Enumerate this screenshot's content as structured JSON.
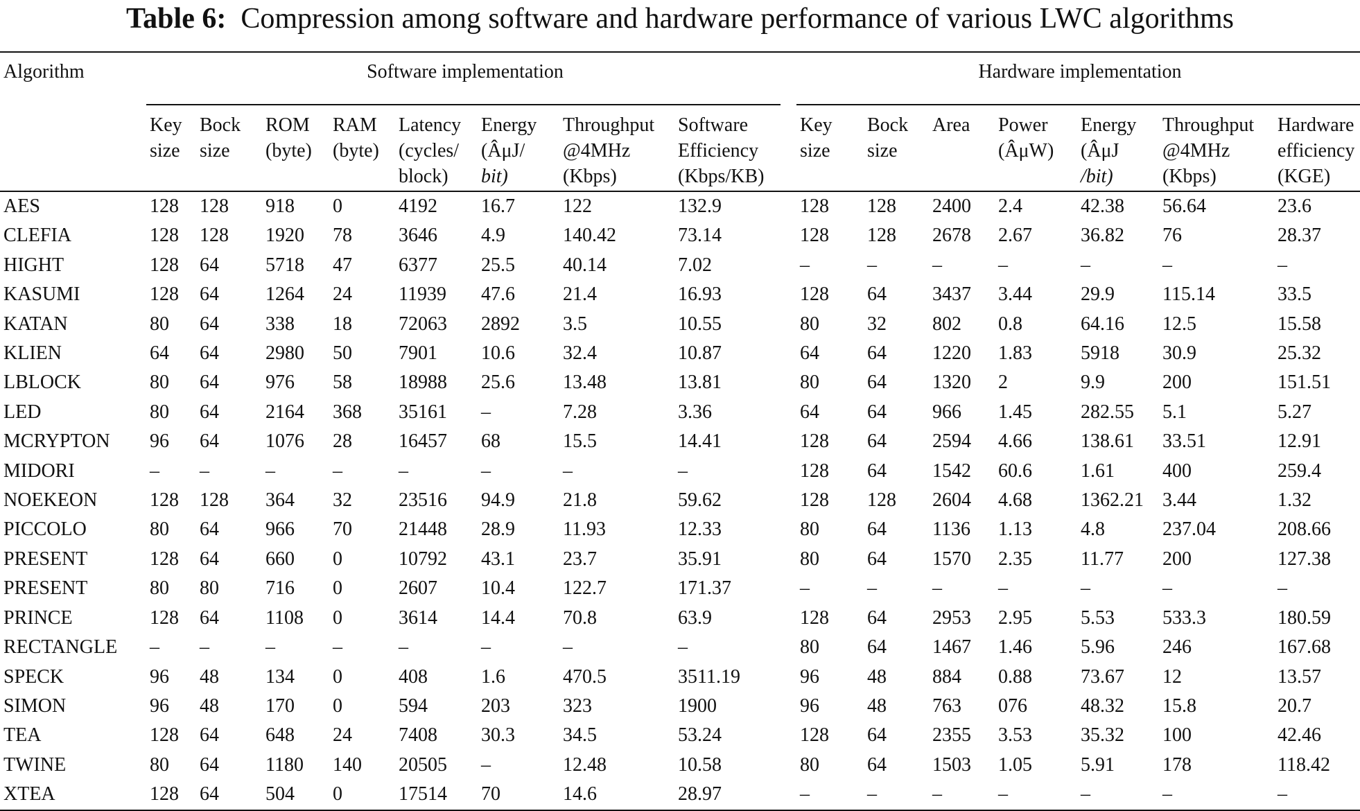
{
  "caption": {
    "label": "Table 6:",
    "text": "Compression among software and hardware performance of various LWC algorithms"
  },
  "table": {
    "algorithm_header": "Algorithm",
    "software_group": "Software implementation",
    "hardware_group": "Hardware implementation",
    "software_columns": [
      [
        "Key",
        "size",
        ""
      ],
      [
        "Bock",
        "size",
        ""
      ],
      [
        "ROM",
        "(byte)",
        ""
      ],
      [
        "RAM",
        "(byte)",
        ""
      ],
      [
        "Latency",
        "(cycles/",
        "block)"
      ],
      [
        "Energy",
        "(ÂμJ/",
        "bit)"
      ],
      [
        "Throughput",
        "@4MHz",
        "(Kbps)"
      ],
      [
        "Software",
        "Efficiency",
        "(Kbps/KB)"
      ]
    ],
    "hardware_columns": [
      [
        "Key",
        "size",
        ""
      ],
      [
        "Bock",
        "size",
        ""
      ],
      [
        "Area",
        "",
        ""
      ],
      [
        "Power",
        "(ÂμW)",
        ""
      ],
      [
        "Energy",
        "(ÂμJ",
        "/bit)"
      ],
      [
        "Throughput",
        "@4MHz",
        "(Kbps)"
      ],
      [
        "Hardware",
        "efficiency",
        "(KGE)"
      ]
    ],
    "rows": [
      [
        "AES",
        "128",
        "128",
        "918",
        "0",
        "4192",
        "16.7",
        "122",
        "132.9",
        "128",
        "128",
        "2400",
        "2.4",
        "42.38",
        "56.64",
        "23.6"
      ],
      [
        "CLEFIA",
        "128",
        "128",
        "1920",
        "78",
        "3646",
        "4.9",
        "140.42",
        "73.14",
        "128",
        "128",
        "2678",
        "2.67",
        "36.82",
        "76",
        "28.37"
      ],
      [
        "HIGHT",
        "128",
        "64",
        "5718",
        "47",
        "6377",
        "25.5",
        "40.14",
        "7.02",
        "–",
        "–",
        "–",
        "–",
        "–",
        "–",
        "–"
      ],
      [
        "KASUMI",
        "128",
        "64",
        "1264",
        "24",
        "11939",
        "47.6",
        "21.4",
        "16.93",
        "128",
        "64",
        "3437",
        "3.44",
        "29.9",
        "115.14",
        "33.5"
      ],
      [
        "KATAN",
        "80",
        "64",
        "338",
        "18",
        "72063",
        "2892",
        "3.5",
        "10.55",
        "80",
        "32",
        "802",
        "0.8",
        "64.16",
        "12.5",
        "15.58"
      ],
      [
        "KLIEN",
        "64",
        "64",
        "2980",
        "50",
        "7901",
        "10.6",
        "32.4",
        "10.87",
        "64",
        "64",
        "1220",
        "1.83",
        "5918",
        "30.9",
        "25.32"
      ],
      [
        "LBLOCK",
        "80",
        "64",
        "976",
        "58",
        "18988",
        "25.6",
        "13.48",
        "13.81",
        "80",
        "64",
        "1320",
        "2",
        "9.9",
        "200",
        "151.51"
      ],
      [
        "LED",
        "80",
        "64",
        "2164",
        "368",
        "35161",
        "–",
        "7.28",
        "3.36",
        "64",
        "64",
        "966",
        "1.45",
        "282.55",
        "5.1",
        "5.27"
      ],
      [
        "MCRYPTON",
        "96",
        "64",
        "1076",
        "28",
        "16457",
        "68",
        "15.5",
        "14.41",
        "128",
        "64",
        "2594",
        "4.66",
        "138.61",
        "33.51",
        "12.91"
      ],
      [
        "MIDORI",
        "–",
        "–",
        "–",
        "–",
        "–",
        "–",
        "–",
        "–",
        "128",
        "64",
        "1542",
        "60.6",
        "1.61",
        "400",
        "259.4"
      ],
      [
        "NOEKEON",
        "128",
        "128",
        "364",
        "32",
        "23516",
        "94.9",
        "21.8",
        "59.62",
        "128",
        "128",
        "2604",
        "4.68",
        "1362.21",
        "3.44",
        "1.32"
      ],
      [
        "PICCOLO",
        "80",
        "64",
        "966",
        "70",
        "21448",
        "28.9",
        "11.93",
        "12.33",
        "80",
        "64",
        "1136",
        "1.13",
        "4.8",
        "237.04",
        "208.66"
      ],
      [
        "PRESENT",
        "128",
        "64",
        "660",
        "0",
        "10792",
        "43.1",
        "23.7",
        "35.91",
        "80",
        "64",
        "1570",
        "2.35",
        "11.77",
        "200",
        "127.38"
      ],
      [
        "PRESENT",
        "80",
        "80",
        "716",
        "0",
        "2607",
        "10.4",
        "122.7",
        "171.37",
        "–",
        "–",
        "–",
        "–",
        "–",
        "–",
        "–"
      ],
      [
        "PRINCE",
        "128",
        "64",
        "1108",
        "0",
        "3614",
        "14.4",
        "70.8",
        "63.9",
        "128",
        "64",
        "2953",
        "2.95",
        "5.53",
        "533.3",
        "180.59"
      ],
      [
        "RECTANGLE",
        "–",
        "–",
        "–",
        "–",
        "–",
        "–",
        "–",
        "–",
        "80",
        "64",
        "1467",
        "1.46",
        "5.96",
        "246",
        "167.68"
      ],
      [
        "SPECK",
        "96",
        "48",
        "134",
        "0",
        "408",
        "1.6",
        "470.5",
        "3511.19",
        "96",
        "48",
        "884",
        "0.88",
        "73.67",
        "12",
        "13.57"
      ],
      [
        "SIMON",
        "96",
        "48",
        "170",
        "0",
        "594",
        "203",
        "323",
        "1900",
        "96",
        "48",
        "763",
        "076",
        "48.32",
        "15.8",
        "20.7"
      ],
      [
        "TEA",
        "128",
        "64",
        "648",
        "24",
        "7408",
        "30.3",
        "34.5",
        "53.24",
        "128",
        "64",
        "2355",
        "3.53",
        "35.32",
        "100",
        "42.46"
      ],
      [
        "TWINE",
        "80",
        "64",
        "1180",
        "140",
        "20505",
        "–",
        "12.48",
        "10.58",
        "80",
        "64",
        "1503",
        "1.05",
        "5.91",
        "178",
        "118.42"
      ],
      [
        "XTEA",
        "128",
        "64",
        "504",
        "0",
        "17514",
        "70",
        "14.6",
        "28.97",
        "–",
        "–",
        "–",
        "–",
        "–",
        "–",
        "–"
      ]
    ]
  }
}
